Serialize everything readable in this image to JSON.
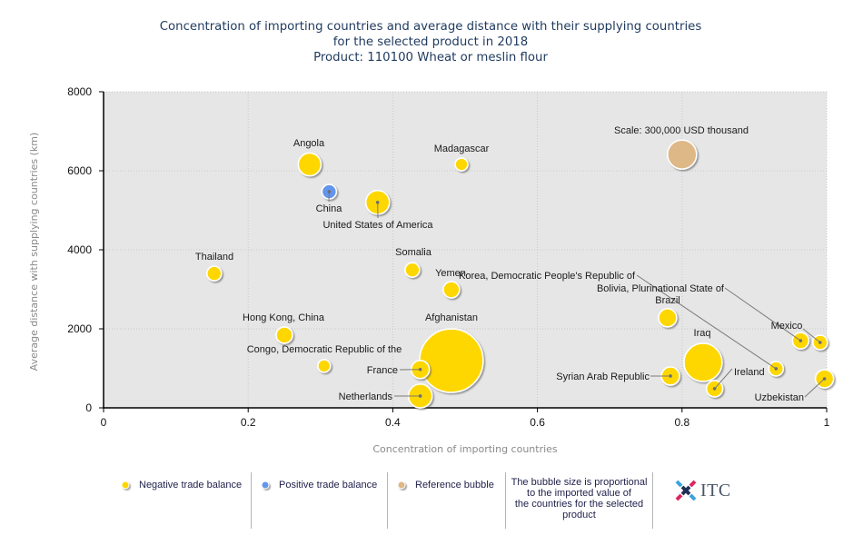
{
  "chart_data": {
    "type": "scatter",
    "variant": "bubble",
    "title": [
      "Concentration of importing countries and average distance with their supplying countries",
      "for the selected product in 2018",
      "Product: 110100 Wheat or meslin flour"
    ],
    "xlabel": "Concentration of importing countries",
    "ylabel": "Average distance with supplying countries (km)",
    "xlim": [
      0,
      1
    ],
    "ylim": [
      0,
      8000
    ],
    "xticks": [
      0,
      0.2,
      0.4,
      0.6,
      0.8,
      1
    ],
    "yticks": [
      0,
      2000,
      4000,
      6000,
      8000
    ],
    "grid": true,
    "size_measure": "Imported value (USD thousand, estimated from bubble area)",
    "series": [
      {
        "name": "Negative trade balance",
        "color": "#FFD700",
        "points": [
          {
            "label": "Angola",
            "x": 0.285,
            "y": 6160,
            "value": 185000
          },
          {
            "label": "Madagascar",
            "x": 0.495,
            "y": 6160,
            "value": 57000
          },
          {
            "label": "United States of America",
            "x": 0.379,
            "y": 5200,
            "value": 200000
          },
          {
            "label": "Thailand",
            "x": 0.153,
            "y": 3400,
            "value": 75000
          },
          {
            "label": "Somalia",
            "x": 0.427,
            "y": 3490,
            "value": 75000
          },
          {
            "label": "Yemen",
            "x": 0.481,
            "y": 2990,
            "value": 95000
          },
          {
            "label": "Korea, Democratic People's Republic of",
            "x": 0.93,
            "y": 990,
            "value": 75000
          },
          {
            "label": "Bolivia, Plurinational State of",
            "x": 0.964,
            "y": 1700,
            "value": 95000
          },
          {
            "label": "Brazil",
            "x": 0.78,
            "y": 2280,
            "value": 117000
          },
          {
            "label": "Hong Kong, China",
            "x": 0.25,
            "y": 1840,
            "value": 95000
          },
          {
            "label": "Afghanistan",
            "x": 0.481,
            "y": 1195,
            "value": 1435000
          },
          {
            "label": "Congo, Democratic Republic of the",
            "x": 0.305,
            "y": 1060,
            "value": 57000
          },
          {
            "label": "France",
            "x": 0.438,
            "y": 970,
            "value": 117000
          },
          {
            "label": "Netherlands",
            "x": 0.438,
            "y": 300,
            "value": 200000
          },
          {
            "label": "Iraq",
            "x": 0.829,
            "y": 1150,
            "value": 517000
          },
          {
            "label": "Syrian Arab Republic",
            "x": 0.784,
            "y": 805,
            "value": 117000
          },
          {
            "label": "Ireland",
            "x": 0.845,
            "y": 485,
            "value": 95000
          },
          {
            "label": "Mexico",
            "x": 0.991,
            "y": 1655,
            "value": 75000
          },
          {
            "label": "Uzbekistan",
            "x": 0.997,
            "y": 735,
            "value": 117000
          }
        ]
      },
      {
        "name": "Positive trade balance",
        "color": "#6495ED",
        "points": [
          {
            "label": "China",
            "x": 0.312,
            "y": 5470,
            "value": 75000
          }
        ]
      }
    ],
    "reference_bubble": {
      "label": "Scale: 300,000 USD thousand",
      "x": 0.8,
      "y": 6410,
      "value": 300000,
      "color": "#DEB887"
    },
    "legend_placement": "bottom"
  },
  "legend": {
    "items": [
      {
        "label": "Negative trade balance",
        "color": "#FFD700"
      },
      {
        "label": "Positive trade balance",
        "color": "#6495ED"
      },
      {
        "label": "Reference bubble",
        "color": "#DEB887"
      }
    ],
    "note_lines": [
      "The bubble size is proportional",
      "to the imported value of",
      "the countries for the selected",
      "product"
    ]
  },
  "logo": {
    "text": "ITC",
    "icon": "itc-cross-logo-icon"
  }
}
